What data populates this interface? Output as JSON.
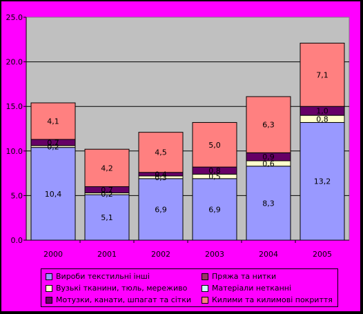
{
  "chart_data": {
    "type": "bar",
    "stacked": true,
    "categories": [
      "2000",
      "2001",
      "2002",
      "2003",
      "2004",
      "2005"
    ],
    "ylim": [
      0,
      25
    ],
    "yticks": [
      "0.0",
      "5.0",
      "10.0",
      "15.0",
      "20.0",
      "25.0"
    ],
    "grid": true,
    "legend_position": "bottom",
    "series": [
      {
        "name": "Вироби текстильні інші",
        "color": "#9999FF",
        "values": [
          10.4,
          5.1,
          6.9,
          6.9,
          8.3,
          13.2
        ],
        "labels": [
          "10,4",
          "5,1",
          "6,9",
          "6,9",
          "8,3",
          "13,2"
        ]
      },
      {
        "name": "Пряжа та нитки",
        "color": "#993366",
        "values": [
          0.0,
          0.0,
          0.0,
          0.0,
          0.0,
          0.0
        ],
        "labels": [
          "",
          "",
          "",
          "",
          "",
          ""
        ]
      },
      {
        "name": "Вузькі тканини, тюль, мереживо",
        "color": "#FFFFCC",
        "values": [
          0.2,
          0.2,
          0.3,
          0.5,
          0.6,
          0.8
        ],
        "labels": [
          "0,2",
          "0,2",
          "0,3",
          "0,5",
          "0,6",
          "0,8"
        ]
      },
      {
        "name": "Матеріали нетканні",
        "color": "#CCFFFF",
        "values": [
          0.0,
          0.0,
          0.0,
          0.0,
          0.0,
          0.0
        ],
        "labels": [
          "",
          "",
          "",
          "",
          "",
          ""
        ]
      },
      {
        "name": "Мотузки, канати, шпагат та сітки",
        "color": "#660066",
        "values": [
          0.7,
          0.7,
          0.4,
          0.8,
          0.9,
          1.0
        ],
        "labels": [
          "0,7",
          "0,7",
          "0,4",
          "0,8",
          "0,9",
          "1,0"
        ]
      },
      {
        "name": "Килими та килимові покриття",
        "color": "#FF8080",
        "values": [
          4.1,
          4.2,
          4.5,
          5.0,
          6.3,
          7.1
        ],
        "labels": [
          "4,1",
          "4,2",
          "4,5",
          "5,0",
          "6,3",
          "7,1"
        ]
      }
    ]
  }
}
